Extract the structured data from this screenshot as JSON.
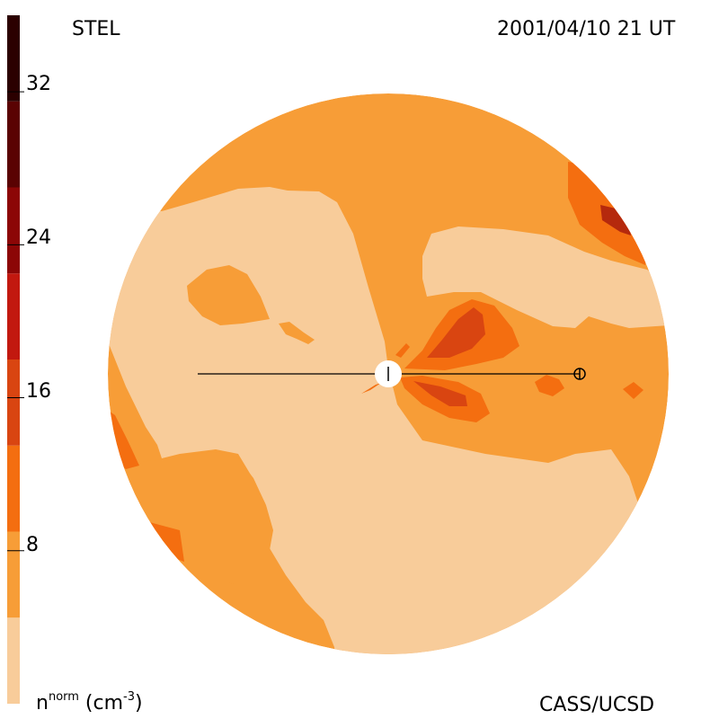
{
  "header": {
    "site_label": "STEL",
    "timestamp": "2001/04/10 21 UT"
  },
  "footer": {
    "quantity_symbol": "n",
    "quantity_superscript": "norm",
    "units_open": " (cm",
    "units_exponent": "-3",
    "units_close": ")",
    "credit": "CASS/UCSD"
  },
  "colorbar": {
    "tick_labels": [
      "32",
      "24",
      "16",
      "8"
    ],
    "tick_values": [
      32,
      24,
      16,
      8
    ],
    "range": [
      0,
      36
    ],
    "band_colors": [
      "#f8cc9a",
      "#f79d37",
      "#f46e10",
      "#d94511",
      "#c2180f",
      "#8c0606",
      "#5a0202",
      "#2b0000"
    ]
  },
  "map": {
    "colors": {
      "level0": "#f8cc9a",
      "level1": "#f79d37",
      "level2": "#f46e10",
      "level3": "#d94511",
      "level4": "#b5290d"
    },
    "observer_symbol": "earth-symbol-icon",
    "sun_symbol": "sun-disk-icon"
  }
}
